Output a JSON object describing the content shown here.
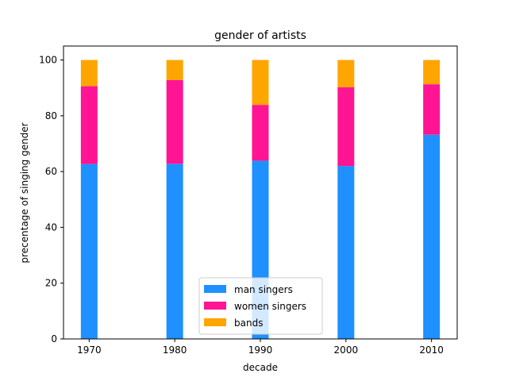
{
  "chart_data": {
    "type": "bar",
    "stacked": true,
    "title": "gender of artists",
    "xlabel": "decade",
    "ylabel": "precentage of singing gender",
    "categories": [
      "1970",
      "1980",
      "1990",
      "2000",
      "2010"
    ],
    "x": [
      1970,
      1980,
      1990,
      2000,
      2010
    ],
    "xlim": [
      1967,
      2013
    ],
    "ylim": [
      0,
      105
    ],
    "yticks": [
      "0",
      "20",
      "40",
      "60",
      "80",
      "100"
    ],
    "series": [
      {
        "name": "man singers",
        "color": "#1e90ff",
        "values": [
          62.7,
          62.8,
          63.9,
          62.0,
          73.2
        ]
      },
      {
        "name": "women singers",
        "color": "#ff1493",
        "values": [
          27.9,
          30.0,
          20.0,
          28.2,
          18.1
        ]
      },
      {
        "name": "bands",
        "color": "#ffa500",
        "values": [
          9.4,
          7.2,
          16.1,
          9.8,
          8.7
        ]
      }
    ],
    "legend_position": "bottom-center",
    "grid": false
  }
}
